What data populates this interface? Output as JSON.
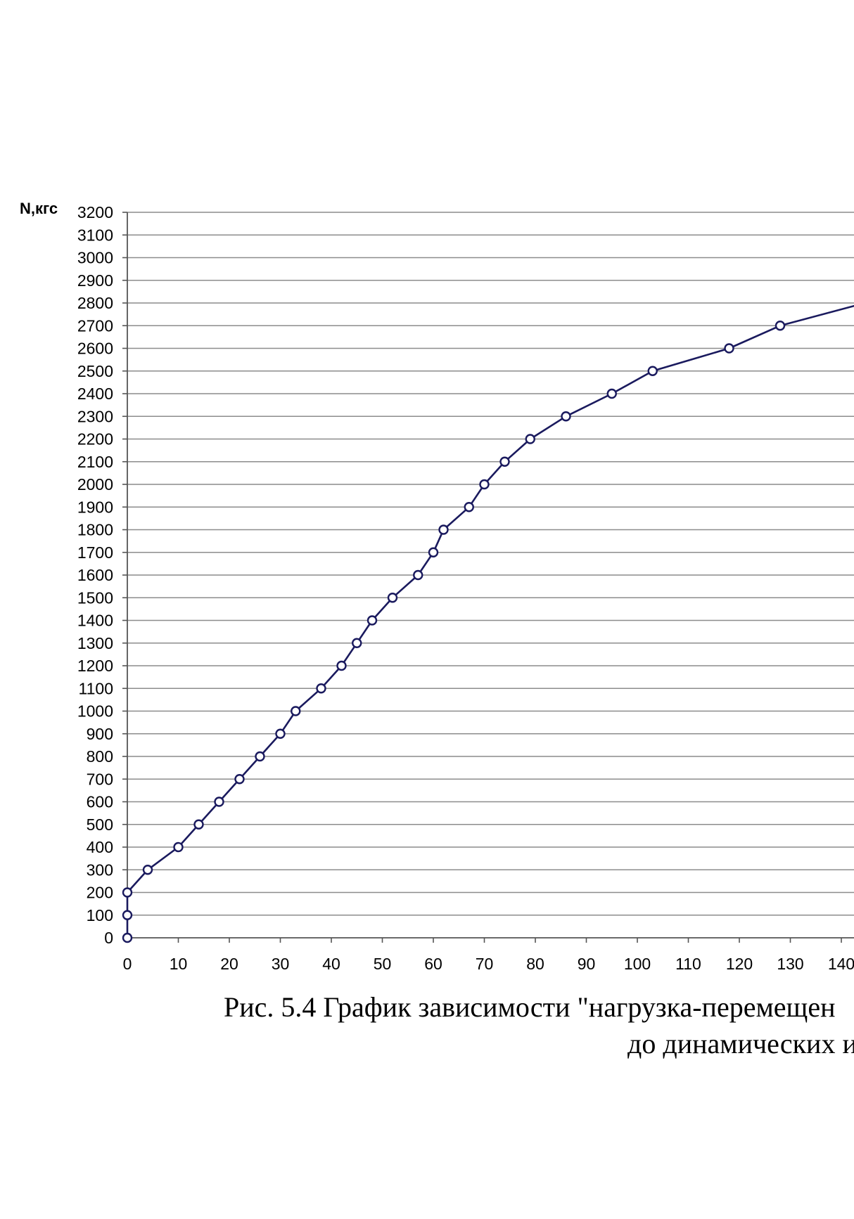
{
  "chart_data": {
    "type": "line",
    "ylabel": "N,кгс",
    "xlabel": "",
    "xlim": [
      0,
      145
    ],
    "ylim": [
      0,
      3200
    ],
    "xticks": [
      0,
      10,
      20,
      30,
      40,
      50,
      60,
      70,
      80,
      90,
      100,
      110,
      120,
      130,
      140
    ],
    "xtick_labels": [
      "0",
      "10",
      "20",
      "30",
      "40",
      "50",
      "60",
      "70",
      "80",
      "90",
      "100",
      "110",
      "120",
      "130",
      "140"
    ],
    "yticks": [
      0,
      100,
      200,
      300,
      400,
      500,
      600,
      700,
      800,
      900,
      1000,
      1100,
      1200,
      1300,
      1400,
      1500,
      1600,
      1700,
      1800,
      1900,
      2000,
      2100,
      2200,
      2300,
      2400,
      2500,
      2600,
      2700,
      2800,
      2900,
      3000,
      3100,
      3200
    ],
    "ytick_labels": [
      "0",
      "100",
      "200",
      "300",
      "400",
      "500",
      "600",
      "700",
      "800",
      "900",
      "1000",
      "1100",
      "1200",
      "1300",
      "1400",
      "1500",
      "1600",
      "1700",
      "1800",
      "1900",
      "2000",
      "2100",
      "2200",
      "2300",
      "2400",
      "2500",
      "2600",
      "2700",
      "2800",
      "2900",
      "3000",
      "3100",
      "3200"
    ],
    "grid": true,
    "line_color": "#1a1a5e",
    "grid_color": "#8c8c8c",
    "marker": "circle-open",
    "series": [
      {
        "x": [
          0,
          0,
          0,
          4,
          10,
          14,
          18,
          22,
          26,
          30,
          33,
          38,
          42,
          45,
          48,
          52,
          57,
          60,
          62,
          67,
          70,
          74,
          79,
          86,
          95,
          103,
          118,
          128
        ],
        "y": [
          0,
          100,
          200,
          300,
          400,
          500,
          600,
          700,
          800,
          900,
          1000,
          1100,
          1200,
          1300,
          1400,
          1500,
          1600,
          1700,
          1800,
          1900,
          2000,
          2100,
          2200,
          2300,
          2400,
          2500,
          2600,
          2700
        ]
      }
    ],
    "line_continues_to": {
      "x": 143,
      "y": 2790
    }
  },
  "caption": {
    "line1": "Рис.  5.4  График зависимости \"нагрузка-перемещен",
    "line2": "до динамических и"
  }
}
